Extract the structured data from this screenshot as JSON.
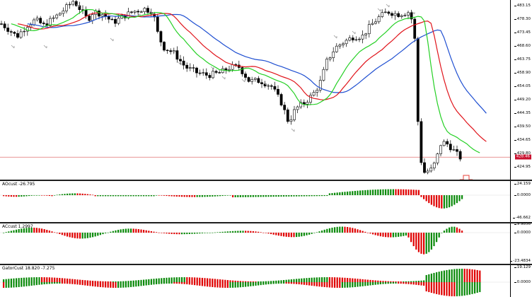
{
  "colors": {
    "background": "#ffffff",
    "bull_candle": "#ffffff",
    "bear_candle": "#000000",
    "jaw": "#1f4fd1",
    "teeth": "#e0141b",
    "lips": "#25d025",
    "fractal_arrow": "#9a9a9a",
    "price_line": "#e07070",
    "up_bar": "#0a8a0a",
    "down_bar": "#e00000",
    "sell_arrow": "#e8403a"
  },
  "price_panel": {
    "axis_ticks": [
      "483.15",
      "478.30",
      "473.45",
      "468.60",
      "463.75",
      "458.90",
      "454.05",
      "449.20",
      "444.35",
      "439.50",
      "434.65",
      "429.80",
      "424.95"
    ],
    "current_price": "428.46",
    "arrow_icon": "sell-arrow-icon"
  },
  "indicators": [
    {
      "label": "AOcust -26.795",
      "ticks": [
        "24.159",
        "0.0000",
        "-46.662"
      ]
    },
    {
      "label": "ACcust 1.2997",
      "ticks": [
        "9.9856",
        "0.0000",
        "-23.4834"
      ]
    },
    {
      "label": "GatorCust 18.820 -7.275",
      "ticks": [
        "19.129",
        "0.0000"
      ]
    }
  ]
}
